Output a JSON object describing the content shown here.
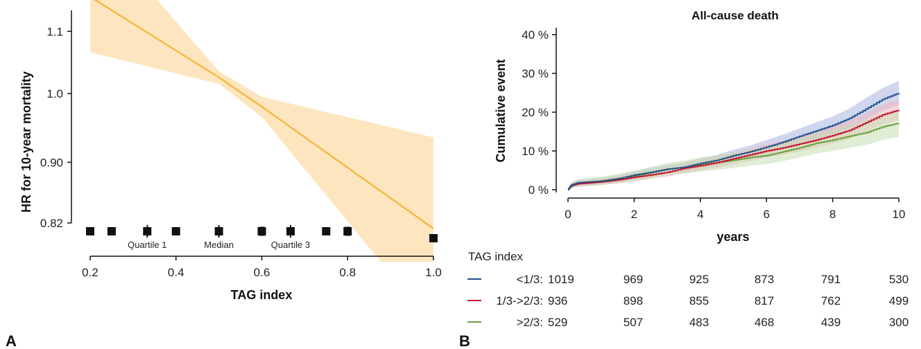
{
  "chart_data": [
    {
      "panel_label": "A",
      "type": "line",
      "xlabel": "TAG index",
      "ylabel": "HR for 10-year mortality",
      "xlim": [
        0.2,
        1.0
      ],
      "ylim": [
        0.82,
        1.13
      ],
      "y_scale": "log",
      "x_ticks": [
        0.2,
        0.4,
        0.6,
        0.8,
        1.0
      ],
      "x_tick_labels": [
        "0.2",
        "0.4",
        "0.6",
        "0.8",
        "1.0"
      ],
      "y_ticks": [
        0.82,
        0.9,
        1.0,
        1.1
      ],
      "y_tick_labels": [
        "0.82",
        "0.90",
        "1.0",
        "1.1"
      ],
      "line_color": "#f5b83d",
      "band_color": "#fde2b4",
      "series": [
        {
          "x": [
            0.2,
            0.5,
            0.6,
            1.0
          ],
          "y": [
            1.16,
            1.025,
            0.98,
            0.813
          ],
          "ci_lower": [
            1.065,
            1.015,
            0.965,
            0.7
          ],
          "ci_upper": [
            1.3,
            1.035,
            0.995,
            0.935
          ]
        }
      ],
      "rug_ticks": [
        0.2,
        0.25,
        0.333,
        0.4,
        0.5,
        0.6,
        0.667,
        0.75,
        0.8
      ],
      "rug_end": 1.0,
      "annotations": [
        {
          "text": "Quartile 1",
          "x": 0.333
        },
        {
          "text": "Median",
          "x": 0.5
        },
        {
          "text": "Quartile 3",
          "x": 0.667
        }
      ]
    },
    {
      "panel_label": "B",
      "type": "line",
      "title": "All-cause death",
      "xlabel": "years",
      "ylabel": "Cumulative event",
      "xlim": [
        0,
        10
      ],
      "ylim": [
        0,
        40
      ],
      "x_ticks": [
        0,
        2,
        4,
        6,
        8,
        10
      ],
      "x_tick_labels": [
        "0",
        "2",
        "4",
        "6",
        "8",
        "10"
      ],
      "y_ticks": [
        0,
        10,
        20,
        30,
        40
      ],
      "y_tick_labels": [
        "0 %",
        "10 %",
        "20 %",
        "30 %",
        "40 %"
      ],
      "series": [
        {
          "name": "<1/3",
          "color": "#1f4e8c",
          "band_color": "#a9b4e0",
          "x": [
            0,
            0.1,
            0.3,
            0.6,
            1,
            1.5,
            2,
            2.5,
            3,
            3.5,
            4,
            4.5,
            5,
            5.5,
            6,
            6.5,
            7,
            7.5,
            8,
            8.5,
            9,
            9.5,
            10
          ],
          "y": [
            0,
            1.2,
            1.8,
            2.0,
            2.2,
            2.8,
            3.8,
            4.5,
            5.3,
            5.8,
            6.8,
            7.6,
            8.8,
            9.8,
            11.0,
            12.3,
            13.8,
            15.2,
            16.6,
            18.4,
            20.8,
            23.3,
            25.0
          ],
          "lower": [
            0,
            0.5,
            1.0,
            1.2,
            1.4,
            1.9,
            2.8,
            3.4,
            4.2,
            4.6,
            5.5,
            6.2,
            7.3,
            8.2,
            9.2,
            10.4,
            11.8,
            13.0,
            14.3,
            15.9,
            18.0,
            20.4,
            21.9
          ],
          "upper": [
            0,
            1.9,
            2.6,
            2.8,
            3.0,
            3.7,
            4.8,
            5.6,
            6.4,
            7.0,
            8.1,
            9.0,
            10.3,
            11.4,
            12.8,
            14.2,
            15.8,
            17.4,
            18.9,
            20.9,
            23.6,
            26.2,
            28.1
          ]
        },
        {
          "name": "1/3->2/3",
          "color": "#c8102e",
          "band_color": "#f3b3bd",
          "x": [
            0,
            0.1,
            0.3,
            0.6,
            1,
            1.5,
            2,
            2.5,
            3,
            3.5,
            4,
            4.5,
            5,
            5.5,
            6,
            6.5,
            7,
            7.5,
            8,
            8.5,
            9,
            9.5,
            10
          ],
          "y": [
            0,
            1.0,
            1.5,
            1.7,
            2.0,
            2.5,
            3.2,
            3.8,
            4.5,
            5.5,
            6.2,
            7.0,
            8.0,
            9.0,
            10.0,
            10.8,
            11.8,
            12.8,
            14.0,
            15.3,
            17.3,
            19.3,
            20.6
          ],
          "lower": [
            0,
            0.4,
            0.8,
            1.0,
            1.2,
            1.6,
            2.2,
            2.8,
            3.4,
            4.3,
            4.9,
            5.6,
            6.5,
            7.4,
            8.3,
            9.0,
            9.9,
            10.8,
            11.9,
            13.1,
            14.9,
            16.8,
            17.9
          ],
          "upper": [
            0,
            1.6,
            2.2,
            2.5,
            2.8,
            3.4,
            4.2,
            4.9,
            5.7,
            6.7,
            7.5,
            8.4,
            9.5,
            10.6,
            11.7,
            12.6,
            13.8,
            14.9,
            16.2,
            17.6,
            19.7,
            21.8,
            23.3
          ]
        },
        {
          "name": ">2/3",
          "color": "#6aa03a",
          "band_color": "#c7deb2",
          "x": [
            0,
            0.1,
            0.3,
            0.6,
            1,
            1.5,
            2,
            2.5,
            3,
            3.5,
            4,
            4.5,
            5,
            5.5,
            6,
            6.5,
            7,
            7.5,
            8,
            8.5,
            9,
            9.5,
            10
          ],
          "y": [
            0,
            1.1,
            1.6,
            1.9,
            2.3,
            2.9,
            3.5,
            4.4,
            5.3,
            5.8,
            6.5,
            7.0,
            7.6,
            8.3,
            8.8,
            9.8,
            10.8,
            12.0,
            12.8,
            13.8,
            14.7,
            16.2,
            17.2
          ],
          "lower": [
            0,
            0.3,
            0.7,
            0.9,
            1.2,
            1.7,
            2.2,
            2.9,
            3.7,
            4.1,
            4.7,
            5.1,
            5.6,
            6.2,
            6.6,
            7.4,
            8.3,
            9.3,
            10.0,
            10.8,
            11.5,
            12.8,
            13.6
          ],
          "upper": [
            0,
            1.9,
            2.5,
            2.9,
            3.4,
            4.1,
            4.8,
            5.9,
            6.9,
            7.5,
            8.3,
            8.9,
            9.6,
            10.4,
            11.0,
            12.2,
            13.3,
            14.7,
            15.6,
            16.8,
            17.9,
            19.6,
            20.8
          ]
        }
      ]
    }
  ],
  "risk_table": {
    "header": "TAG index",
    "rows": [
      {
        "label": "<1/3:",
        "color": "#1f4e8c",
        "values": [
          "1019",
          "969",
          "925",
          "873",
          "791",
          "530"
        ]
      },
      {
        "label": "1/3->2/3:",
        "color": "#c8102e",
        "values": [
          "936",
          "898",
          "855",
          "817",
          "762",
          "499"
        ]
      },
      {
        "label": ">2/3:",
        "color": "#6aa03a",
        "values": [
          "529",
          "507",
          "483",
          "468",
          "439",
          "300"
        ]
      }
    ]
  }
}
